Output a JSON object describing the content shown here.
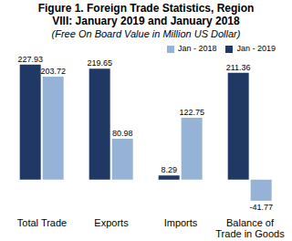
{
  "chart_data": {
    "type": "bar",
    "title": "Figure 1. Foreign Trade Statistics, Region VIII: January 2019 and January 2018",
    "subtitle": "(Free On Board Value in Million US Dollar)",
    "categories": [
      "Total Trade",
      "Exports",
      "Imports",
      "Balance of Trade in Goods"
    ],
    "series": [
      {
        "name": "Jan - 2019",
        "color": "#1f3864",
        "values": [
          227.93,
          219.65,
          8.29,
          211.36
        ]
      },
      {
        "name": "Jan - 2018",
        "color": "#95b3d7",
        "values": [
          203.72,
          80.98,
          122.75,
          -41.77
        ]
      }
    ],
    "ylim": [
      -60,
      240
    ],
    "data_labels": true,
    "tick_labels": "x",
    "legend": "top-right",
    "grid": false
  }
}
